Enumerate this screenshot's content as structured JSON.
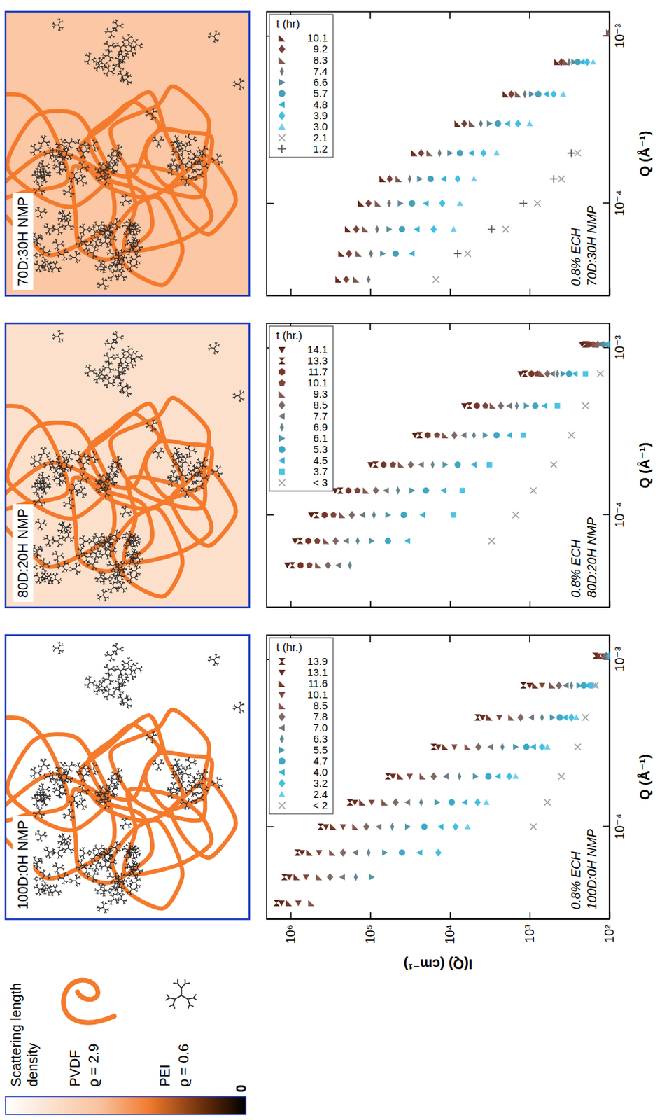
{
  "key": {
    "title": "Scattering length density",
    "colorbar_ticks": [
      0
    ],
    "items": [
      {
        "name": "PVDF",
        "label": "ϱ = 2.9"
      },
      {
        "name": "PEI",
        "label": "ϱ = 0.6"
      }
    ]
  },
  "panels": [
    {
      "label": "100D:0H NMP"
    },
    {
      "label": "80D:20H NMP"
    },
    {
      "label": "70D:30H NMP"
    }
  ],
  "chart_data": [
    {
      "type": "scatter",
      "log": true,
      "legend": "upper right",
      "legend_title": "t (hr.)",
      "x_label": "Q (Å⁻¹)",
      "y_label": "I(Q) (cm⁻¹)",
      "annotations": [
        "0.8% ECH",
        "100D:0H NMP"
      ],
      "xlim": [
        2.8e-05,
        0.0014
      ],
      "ylim": [
        100,
        2000000
      ],
      "xticks": [
        {
          "value": 0.0001,
          "label": "10⁻⁴"
        },
        {
          "value": 0.001,
          "label": "10⁻³"
        }
      ],
      "yticks": [
        {
          "value": 100,
          "label": "10²"
        },
        {
          "value": 1000,
          "label": "10³"
        },
        {
          "value": 10000,
          "label": "10⁴"
        },
        {
          "value": 100000,
          "label": "10⁵"
        },
        {
          "value": 1000000,
          "label": "10⁶"
        }
      ],
      "x": [
        3.5e-05,
        5e-05,
        7e-05,
        0.0001,
        0.00014,
        0.0002,
        0.0003,
        0.00045,
        0.0007,
        0.00105
      ],
      "series": [
        {
          "name": "13.9",
          "color": "#5a231b",
          "marker": "hourglass",
          "values": [
            1500000,
            1200000,
            820000,
            420000,
            180000,
            60000,
            16000,
            4500,
            1200,
            150
          ]
        },
        {
          "name": "13.1",
          "color": "#6a2b20",
          "marker": "triangle-down",
          "values": [
            1300000,
            1040000,
            720000,
            360000,
            156000,
            52000,
            14000,
            3900,
            1000,
            140
          ]
        },
        {
          "name": "11.6",
          "color": "#7a3628",
          "marker": "triangle-corner",
          "values": [
            1050000,
            840000,
            580000,
            290000,
            126000,
            42000,
            11500,
            3200,
            850,
            130
          ]
        },
        {
          "name": "10.1",
          "color": "#80453a",
          "marker": "triangle-down",
          "values": [
            800000,
            640000,
            440000,
            220000,
            96000,
            32000,
            8800,
            2400,
            700,
            120
          ]
        },
        {
          "name": "8.5",
          "color": "#86574e",
          "marker": "triangle-corner",
          "values": [
            550000,
            440000,
            300000,
            154000,
            66000,
            22000,
            6000,
            1700,
            520,
            110
          ]
        },
        {
          "name": "7.8",
          "color": "#7e6964",
          "marker": "diamond",
          "values": [
            null,
            320000,
            220000,
            112000,
            48000,
            16000,
            4400,
            1300,
            430,
            110
          ]
        },
        {
          "name": "7.0",
          "color": "#6f7a7d",
          "marker": "triangle-left",
          "values": [
            null,
            224000,
            154000,
            78000,
            34000,
            11200,
            3100,
            950,
            350,
            100
          ]
        },
        {
          "name": "6.3",
          "color": "#5f8893",
          "marker": "diamond-thin",
          "values": [
            null,
            152000,
            105000,
            53000,
            23000,
            7600,
            2200,
            700,
            300,
            100
          ]
        },
        {
          "name": "5.5",
          "color": "#4d98ad",
          "marker": "triangle-right",
          "values": [
            null,
            96000,
            66000,
            34000,
            14500,
            4800,
            1500,
            520,
            240,
            100
          ]
        },
        {
          "name": "4.7",
          "color": "#3ea8c6",
          "marker": "circle",
          "values": [
            null,
            null,
            40000,
            21000,
            9500,
            3300,
            1100,
            420,
            210,
            100
          ]
        },
        {
          "name": "4.0",
          "color": "#38b4d8",
          "marker": "triangle-left",
          "values": [
            null,
            null,
            24000,
            13000,
            6500,
            2500,
            900,
            360,
            190,
            100
          ]
        },
        {
          "name": "3.2",
          "color": "#45bfe2",
          "marker": "diamond",
          "values": [
            null,
            null,
            14000,
            8500,
            4500,
            1800,
            700,
            300,
            170,
            null
          ]
        },
        {
          "name": "2.4",
          "color": "#6fcdec",
          "marker": "triangle-up",
          "values": [
            null,
            null,
            null,
            6000,
            3500,
            1500,
            600,
            260,
            150,
            null
          ]
        },
        {
          "name": "< 2",
          "color": "#a3a3a3",
          "marker": "x",
          "values": [
            null,
            null,
            null,
            900,
            600,
            400,
            250,
            200,
            150,
            null
          ]
        }
      ]
    },
    {
      "type": "scatter",
      "log": true,
      "legend": "upper right",
      "legend_title": "t (hr.)",
      "tick_labels": "x",
      "x_label": "Q (Å⁻¹)",
      "annotations": [
        "0.8% ECH",
        "80D:20H NMP"
      ],
      "xlim": [
        2.8e-05,
        0.0014
      ],
      "ylim": [
        100,
        2000000
      ],
      "xticks": [
        {
          "value": 0.0001,
          "label": "10⁻⁴"
        },
        {
          "value": 0.001,
          "label": "10⁻³"
        }
      ],
      "yticks": [
        {
          "value": 100,
          "label": "10²"
        },
        {
          "value": 1000,
          "label": "10³"
        },
        {
          "value": 10000,
          "label": "10⁴"
        },
        {
          "value": 100000,
          "label": "10⁵"
        },
        {
          "value": 1000000,
          "label": "10⁶"
        }
      ],
      "x": [
        3.5e-05,
        5e-05,
        7e-05,
        0.0001,
        0.00014,
        0.0002,
        0.0003,
        0.00045,
        0.0007,
        0.00105
      ],
      "series": [
        {
          "name": "14.1",
          "color": "#5a231b",
          "marker": "triangle-down",
          "values": [
            null,
            1100000,
            880000,
            550000,
            275000,
            99000,
            27500,
            6600,
            1300,
            220
          ]
        },
        {
          "name": "13.3",
          "color": "#68291f",
          "marker": "hourglass",
          "values": [
            null,
            950000,
            760000,
            475000,
            238000,
            86000,
            24000,
            5700,
            1150,
            200
          ]
        },
        {
          "name": "11.7",
          "color": "#763326",
          "marker": "hexagon",
          "values": [
            null,
            750000,
            600000,
            375000,
            188000,
            68000,
            19000,
            4600,
            950,
            180
          ]
        },
        {
          "name": "10.1",
          "color": "#80433a",
          "marker": "pentagon",
          "values": [
            null,
            580000,
            464000,
            290000,
            145000,
            52000,
            14500,
            3600,
            800,
            160
          ]
        },
        {
          "name": "9.3",
          "color": "#86564c",
          "marker": "triangle-corner",
          "values": [
            null,
            450000,
            360000,
            225000,
            113000,
            41000,
            11500,
            2900,
            700,
            150
          ]
        },
        {
          "name": "8.5",
          "color": "#7f6863",
          "marker": "diamond",
          "values": [
            null,
            340000,
            272000,
            170000,
            85000,
            31000,
            8800,
            2300,
            600,
            140
          ]
        },
        {
          "name": "7.7",
          "color": "#717878",
          "marker": "triangle-left",
          "values": [
            null,
            250000,
            200000,
            125000,
            63000,
            23000,
            6700,
            1800,
            520,
            130
          ]
        },
        {
          "name": "6.9",
          "color": "#61878f",
          "marker": "diamond-thin",
          "values": [
            null,
            180000,
            144000,
            90000,
            45000,
            16500,
            5000,
            1450,
            450,
            120
          ]
        },
        {
          "name": "6.1",
          "color": "#4f97a9",
          "marker": "triangle-right",
          "values": [
            null,
            null,
            96000,
            60000,
            30000,
            11500,
            3600,
            1100,
            380,
            110
          ]
        },
        {
          "name": "5.3",
          "color": "#3fa7c3",
          "marker": "circle",
          "values": [
            null,
            null,
            60000,
            38000,
            20000,
            8000,
            2600,
            850,
            320,
            100
          ]
        },
        {
          "name": "4.5",
          "color": "#38b4d8",
          "marker": "triangle-left",
          "values": [
            null,
            null,
            34000,
            22000,
            12000,
            5000,
            1800,
            650,
            270,
            100
          ]
        },
        {
          "name": "3.7",
          "color": "#4bc4e6",
          "marker": "square",
          "values": [
            null,
            null,
            null,
            9000,
            7000,
            3200,
            1200,
            450,
            200,
            null
          ]
        },
        {
          "name": "< 3",
          "color": "#a3a3a3",
          "marker": "x",
          "values": [
            null,
            null,
            3000,
            1500,
            900,
            500,
            300,
            200,
            130,
            null
          ]
        }
      ]
    },
    {
      "type": "scatter",
      "log": true,
      "legend": "upper right",
      "legend_title": "t (hr)",
      "tick_labels": "x",
      "x_label": "Q (Å⁻¹)",
      "annotations": [
        "0.8% ECH",
        "70D:30H NMP"
      ],
      "xlim": [
        2.8e-05,
        0.0014
      ],
      "ylim": [
        100,
        2000000
      ],
      "xticks": [
        {
          "value": 0.0001,
          "label": "10⁻⁴"
        },
        {
          "value": 0.001,
          "label": "10⁻³"
        }
      ],
      "yticks": [
        {
          "value": 100,
          "label": "10²"
        },
        {
          "value": 1000,
          "label": "10³"
        },
        {
          "value": 10000,
          "label": "10⁴"
        },
        {
          "value": 100000,
          "label": "10⁵"
        },
        {
          "value": 1000000,
          "label": "10⁶"
        }
      ],
      "x": [
        3.5e-05,
        5e-05,
        7e-05,
        0.0001,
        0.00014,
        0.0002,
        0.0003,
        0.00045,
        0.0007,
        0.00105
      ],
      "series": [
        {
          "name": "10.1",
          "color": "#6a2b20",
          "marker": "triangle-corner",
          "values": [
            250000,
            230000,
            190000,
            130000,
            70000,
            28000,
            8000,
            2000,
            450,
            100
          ]
        },
        {
          "name": "9.2",
          "color": "#7a4036",
          "marker": "diamond",
          "values": [
            200000,
            185000,
            150000,
            105000,
            57000,
            23000,
            6600,
            1700,
            400,
            100
          ]
        },
        {
          "name": "8.3",
          "color": "#7d5a54",
          "marker": "triangle-corner",
          "values": [
            150000,
            140000,
            115000,
            80000,
            44000,
            18000,
            5300,
            1400,
            350,
            100
          ]
        },
        {
          "name": "7.4",
          "color": "#6e767a",
          "marker": "diamond-thin",
          "values": [
            105000,
            98000,
            82000,
            58000,
            32000,
            13500,
            4100,
            1150,
            320,
            null
          ]
        },
        {
          "name": "6.6",
          "color": "#5b8c9c",
          "marker": "triangle-right",
          "values": [
            null,
            70000,
            58000,
            42000,
            24000,
            10000,
            3200,
            950,
            280,
            null
          ]
        },
        {
          "name": "5.7",
          "color": "#45a0b8",
          "marker": "circle",
          "values": [
            null,
            48000,
            40000,
            30000,
            17500,
            7500,
            2500,
            780,
            250,
            null
          ]
        },
        {
          "name": "4.8",
          "color": "#38b2d4",
          "marker": "triangle-left",
          "values": [
            null,
            30000,
            26000,
            20000,
            12000,
            5400,
            1900,
            620,
            220,
            null
          ]
        },
        {
          "name": "3.9",
          "color": "#3fbfe4",
          "marker": "diamond",
          "values": [
            null,
            null,
            16000,
            12500,
            8000,
            3800,
            1400,
            500,
            190,
            null
          ]
        },
        {
          "name": "3.0",
          "color": "#6fcdec",
          "marker": "triangle-up",
          "values": [
            null,
            null,
            9000,
            7500,
            5000,
            2600,
            1000,
            380,
            160,
            null
          ]
        },
        {
          "name": "2.1",
          "color": "#a3a3a3",
          "marker": "x",
          "values": [
            15000,
            6000,
            2000,
            800,
            400,
            250,
            null,
            null,
            null,
            null
          ]
        },
        {
          "name": "1.2",
          "color": "#555555",
          "marker": "plus",
          "values": [
            null,
            8000,
            3000,
            1200,
            500,
            300,
            null,
            null,
            null,
            null
          ]
        }
      ]
    }
  ]
}
